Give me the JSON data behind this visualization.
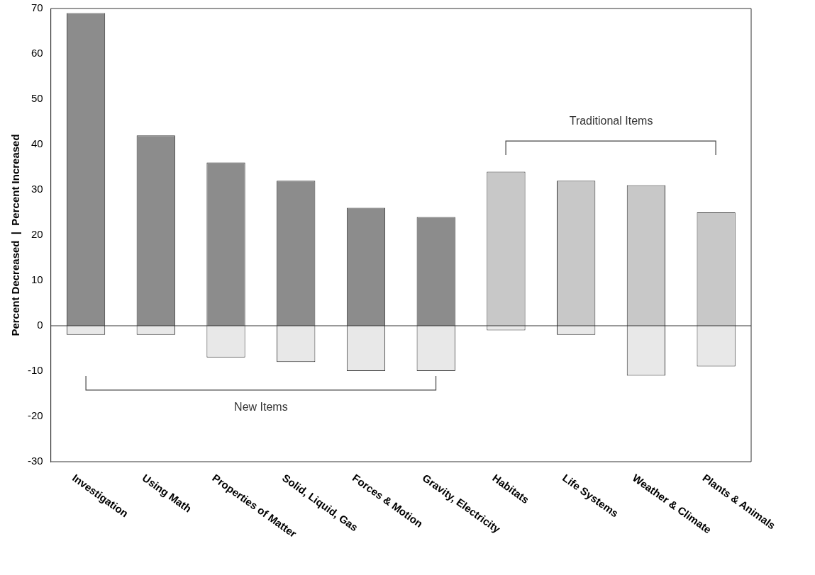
{
  "chart_data": {
    "type": "bar",
    "ylabel": "Percent Decreased  |  Percent Increased",
    "categories": [
      "Investigation",
      "Using Math",
      "Properties of Matter",
      "Solid, Liquid, Gas",
      "Forces & Motion",
      "Gravity, Electricity",
      "Habitats",
      "Life Systems",
      "Weather & Climate",
      "Plants & Animals"
    ],
    "stacked": true,
    "series": [
      {
        "values": [
          69,
          42,
          36,
          32,
          26,
          24,
          34,
          32,
          31,
          25
        ],
        "colors": [
          "#8c8c8c",
          "#8c8c8c",
          "#8c8c8c",
          "#8c8c8c",
          "#8c8c8c",
          "#8c8c8c",
          "#c8c8c8",
          "#c8c8c8",
          "#c8c8c8",
          "#c8c8c8"
        ]
      },
      {
        "values": [
          -2,
          -2,
          -7,
          -8,
          -10,
          -10,
          -1,
          -2,
          -11,
          -9
        ],
        "color": "#e8e8e8"
      }
    ],
    "ylim": [
      -30,
      70
    ],
    "yticks": [
      -30,
      -20,
      -10,
      0,
      10,
      20,
      30,
      40,
      50,
      60,
      70
    ],
    "annotations": [
      "New Items",
      "Traditional Items"
    ],
    "ref_lines": [
      {
        "axis": "y",
        "value": 0,
        "color": "#333333"
      }
    ],
    "grid": false,
    "legend": false
  }
}
